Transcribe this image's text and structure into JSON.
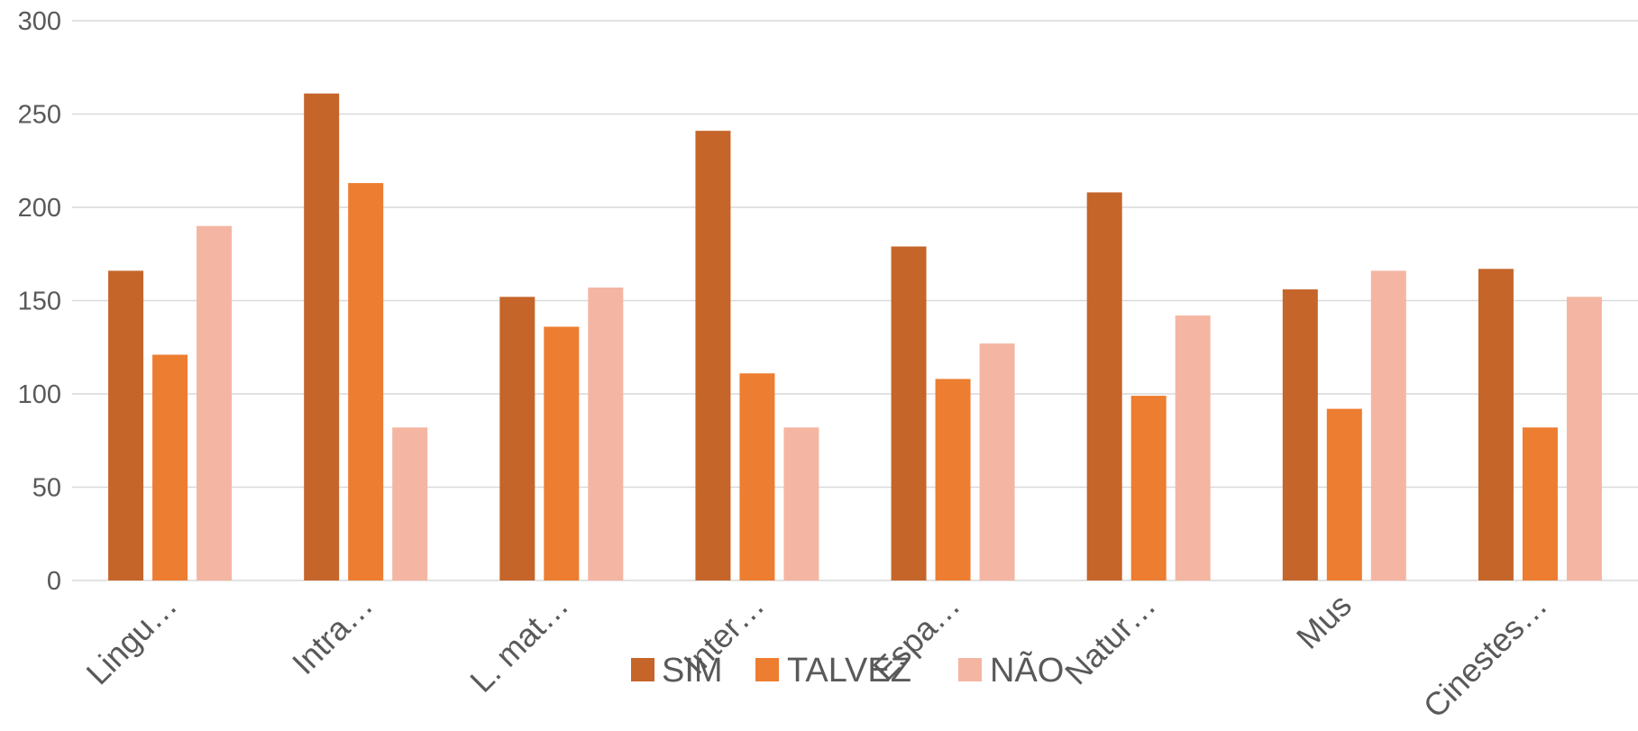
{
  "chart_data": {
    "type": "bar",
    "categories": [
      "Lingu…",
      "Intra…",
      "L. mat…",
      "Inter…",
      "Espa…",
      "Natur…",
      "Mus",
      "Cinestes…"
    ],
    "series": [
      {
        "name": "SIM",
        "color": "#C5652A",
        "values": [
          166,
          261,
          152,
          241,
          179,
          208,
          156,
          167
        ]
      },
      {
        "name": "TALVEZ",
        "color": "#ED7D31",
        "values": [
          121,
          213,
          136,
          111,
          108,
          99,
          92,
          82
        ]
      },
      {
        "name": "NÃO",
        "color": "#F4B6A2",
        "values": [
          190,
          82,
          157,
          82,
          127,
          142,
          166,
          152
        ]
      }
    ],
    "y_ticks": [
      "0",
      "50",
      "100",
      "150",
      "200",
      "250",
      "300"
    ],
    "ylim": [
      0,
      300
    ],
    "grid": true,
    "legend_position": "bottom",
    "gridline_color": "#D9D9D9"
  }
}
